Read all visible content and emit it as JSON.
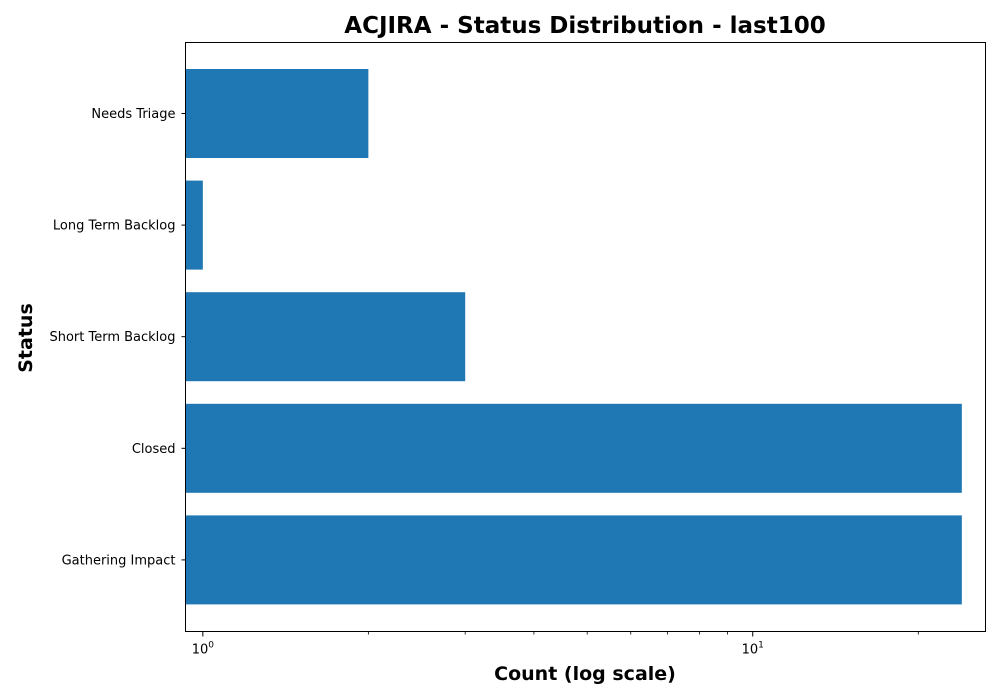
{
  "chart_data": {
    "type": "bar",
    "orientation": "horizontal",
    "title": "ACJIRA - Status Distribution - last100",
    "xlabel": "Count (log scale)",
    "ylabel": "Status",
    "x_scale": "log",
    "xlim": [
      0.93,
      26.5
    ],
    "x_ticks": [
      {
        "base": "10",
        "exp": "0",
        "value": 1
      },
      {
        "base": "10",
        "exp": "1",
        "value": 10
      }
    ],
    "categories": [
      "Needs Triage",
      "Long Term Backlog",
      "Short Term Backlog",
      "Closed",
      "Gathering Impact"
    ],
    "values": [
      2,
      1,
      3,
      24,
      24
    ],
    "bar_color": "#1f77b4",
    "grid": false,
    "legend": "none"
  }
}
